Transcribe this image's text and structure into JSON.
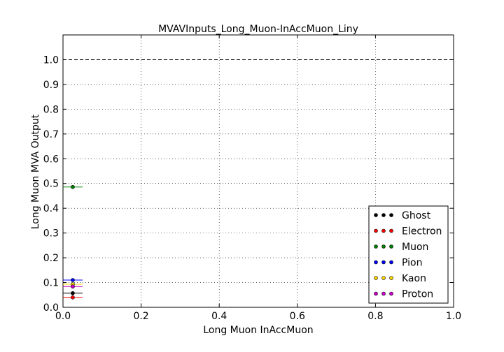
{
  "chart_data": {
    "type": "scatter",
    "title": "MVAVInputs_Long_Muon-InAccMuon_Liny",
    "xlabel": "Long Muon InAccMuon",
    "ylabel": "Long Muon MVA Output",
    "xlim": [
      0.0,
      1.0
    ],
    "ylim": [
      0.0,
      1.1
    ],
    "xticks": [
      "0.0",
      "0.2",
      "0.4",
      "0.6",
      "0.8",
      "1.0"
    ],
    "yticks": [
      "0.0",
      "0.1",
      "0.2",
      "0.3",
      "0.4",
      "0.5",
      "0.6",
      "0.7",
      "0.8",
      "0.9",
      "1.0"
    ],
    "grid": true,
    "reference_line_y": 1.0,
    "legend_position": "lower-right",
    "series": [
      {
        "name": "Ghost",
        "color": "#000000",
        "points": [
          {
            "x": 0.025,
            "y": 0.057,
            "xerr": 0.025
          }
        ]
      },
      {
        "name": "Electron",
        "color": "#ff0000",
        "points": [
          {
            "x": 0.025,
            "y": 0.04,
            "xerr": 0.025
          }
        ]
      },
      {
        "name": "Muon",
        "color": "#008000",
        "points": [
          {
            "x": 0.025,
            "y": 0.486,
            "xerr": 0.025
          }
        ]
      },
      {
        "name": "Pion",
        "color": "#0000ff",
        "points": [
          {
            "x": 0.025,
            "y": 0.11,
            "xerr": 0.025
          }
        ]
      },
      {
        "name": "Kaon",
        "color": "#ffd700",
        "points": [
          {
            "x": 0.025,
            "y": 0.093,
            "xerr": 0.025
          }
        ]
      },
      {
        "name": "Proton",
        "color": "#cc00cc",
        "points": [
          {
            "x": 0.025,
            "y": 0.084,
            "xerr": 0.025
          }
        ]
      }
    ]
  }
}
